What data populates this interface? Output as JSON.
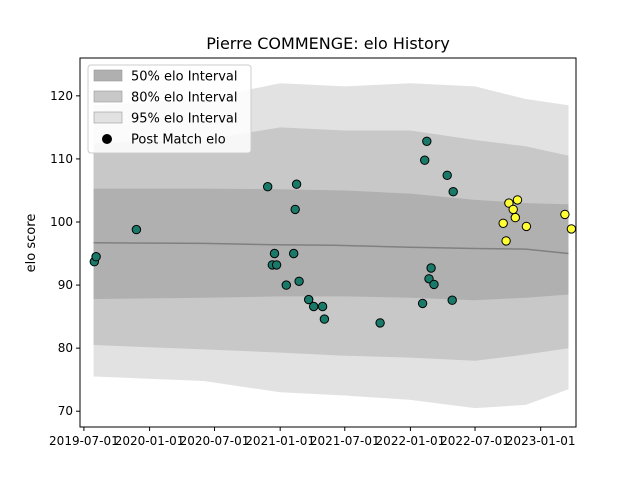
{
  "chart_data": {
    "type": "scatter",
    "title": "Pierre COMMENGE: elo History",
    "xlabel": "",
    "ylabel": "elo score",
    "xlim": [
      "2019-06-20",
      "2023-04-10"
    ],
    "ylim": [
      67.5,
      126
    ],
    "x_ticks": [
      "2019-07",
      "2020-01",
      "2020-07",
      "2021-01",
      "2021-07",
      "2022-01",
      "2022-07",
      "2023-01"
    ],
    "y_ticks": [
      70,
      80,
      90,
      100,
      110,
      120
    ],
    "legend": {
      "placement": "top-left",
      "entries": [
        "50% elo Interval",
        "80% elo Interval",
        "95% elo Interval",
        "Post Match elo"
      ]
    },
    "colors": {
      "band50": "#b0b0b0",
      "band80": "#c8c8c8",
      "band95": "#e2e2e2",
      "mean_line": "#808080",
      "point_old": "#1a7a6a",
      "point_recent": "#ffff33",
      "point_edge": "#000000"
    },
    "elo_mean": [
      {
        "x": "2019-07-28",
        "y": 96.7
      },
      {
        "x": "2020-06-01",
        "y": 96.6
      },
      {
        "x": "2020-12-15",
        "y": 96.4
      },
      {
        "x": "2021-06-01",
        "y": 96.3
      },
      {
        "x": "2022-01-01",
        "y": 96.0
      },
      {
        "x": "2022-07-01",
        "y": 95.8
      },
      {
        "x": "2022-11-20",
        "y": 95.7
      },
      {
        "x": "2023-03-20",
        "y": 95.0
      }
    ],
    "intervals": {
      "p50": {
        "upper": [
          {
            "x": "2019-07-28",
            "y": 105.3
          },
          {
            "x": "2020-06-01",
            "y": 105.3
          },
          {
            "x": "2021-01-01",
            "y": 105.2
          },
          {
            "x": "2021-07-01",
            "y": 105.0
          },
          {
            "x": "2022-01-01",
            "y": 104.5
          },
          {
            "x": "2022-07-01",
            "y": 103.5
          },
          {
            "x": "2022-11-20",
            "y": 103.0
          },
          {
            "x": "2023-03-20",
            "y": 102.8
          }
        ],
        "lower": [
          {
            "x": "2019-07-28",
            "y": 87.8
          },
          {
            "x": "2020-06-01",
            "y": 88.0
          },
          {
            "x": "2021-01-01",
            "y": 88.2
          },
          {
            "x": "2021-07-01",
            "y": 88.2
          },
          {
            "x": "2022-01-01",
            "y": 88.0
          },
          {
            "x": "2022-07-01",
            "y": 87.6
          },
          {
            "x": "2022-11-20",
            "y": 88.0
          },
          {
            "x": "2023-03-20",
            "y": 88.5
          }
        ]
      },
      "p80": {
        "upper": [
          {
            "x": "2019-07-28",
            "y": 112.5
          },
          {
            "x": "2020-06-01",
            "y": 113.0
          },
          {
            "x": "2021-01-01",
            "y": 115.0
          },
          {
            "x": "2021-07-01",
            "y": 114.5
          },
          {
            "x": "2022-01-01",
            "y": 114.5
          },
          {
            "x": "2022-07-01",
            "y": 113.0
          },
          {
            "x": "2022-11-20",
            "y": 112.0
          },
          {
            "x": "2023-03-20",
            "y": 110.5
          }
        ],
        "lower": [
          {
            "x": "2019-07-28",
            "y": 80.5
          },
          {
            "x": "2020-06-01",
            "y": 79.8
          },
          {
            "x": "2021-01-01",
            "y": 79.3
          },
          {
            "x": "2021-07-01",
            "y": 78.8
          },
          {
            "x": "2022-01-01",
            "y": 78.5
          },
          {
            "x": "2022-07-01",
            "y": 78.0
          },
          {
            "x": "2022-11-20",
            "y": 79.0
          },
          {
            "x": "2023-03-20",
            "y": 80.0
          }
        ]
      },
      "p95": {
        "upper": [
          {
            "x": "2019-07-28",
            "y": 118.5
          },
          {
            "x": "2020-06-01",
            "y": 119.5
          },
          {
            "x": "2021-01-01",
            "y": 122.0
          },
          {
            "x": "2021-07-01",
            "y": 121.5
          },
          {
            "x": "2022-01-01",
            "y": 122.0
          },
          {
            "x": "2022-07-01",
            "y": 121.5
          },
          {
            "x": "2022-11-20",
            "y": 119.5
          },
          {
            "x": "2023-03-20",
            "y": 118.5
          }
        ],
        "lower": [
          {
            "x": "2019-07-28",
            "y": 75.5
          },
          {
            "x": "2020-06-01",
            "y": 74.8
          },
          {
            "x": "2021-01-01",
            "y": 73.0
          },
          {
            "x": "2021-07-01",
            "y": 72.5
          },
          {
            "x": "2022-01-01",
            "y": 71.8
          },
          {
            "x": "2022-07-01",
            "y": 70.5
          },
          {
            "x": "2022-11-20",
            "y": 71.0
          },
          {
            "x": "2023-03-20",
            "y": 73.5
          }
        ]
      }
    },
    "post_match_elo": [
      {
        "x": "2019-07-30",
        "y": 93.7,
        "recent": false
      },
      {
        "x": "2019-08-04",
        "y": 94.5,
        "recent": false
      },
      {
        "x": "2019-11-25",
        "y": 98.8,
        "recent": false
      },
      {
        "x": "2020-11-27",
        "y": 105.6,
        "recent": false
      },
      {
        "x": "2020-12-10",
        "y": 93.2,
        "recent": false
      },
      {
        "x": "2020-12-16",
        "y": 95.0,
        "recent": false
      },
      {
        "x": "2020-12-22",
        "y": 93.2,
        "recent": false
      },
      {
        "x": "2021-01-18",
        "y": 90.0,
        "recent": false
      },
      {
        "x": "2021-02-08",
        "y": 95.0,
        "recent": false
      },
      {
        "x": "2021-02-12",
        "y": 102.0,
        "recent": false
      },
      {
        "x": "2021-02-16",
        "y": 106.0,
        "recent": false
      },
      {
        "x": "2021-02-23",
        "y": 90.6,
        "recent": false
      },
      {
        "x": "2021-03-22",
        "y": 87.7,
        "recent": false
      },
      {
        "x": "2021-04-05",
        "y": 86.6,
        "recent": false
      },
      {
        "x": "2021-04-30",
        "y": 86.6,
        "recent": false
      },
      {
        "x": "2021-05-05",
        "y": 84.6,
        "recent": false
      },
      {
        "x": "2021-10-08",
        "y": 84.0,
        "recent": false
      },
      {
        "x": "2022-02-04",
        "y": 87.1,
        "recent": false
      },
      {
        "x": "2022-02-10",
        "y": 109.8,
        "recent": false
      },
      {
        "x": "2022-02-16",
        "y": 112.8,
        "recent": false
      },
      {
        "x": "2022-02-22",
        "y": 91.0,
        "recent": false
      },
      {
        "x": "2022-02-28",
        "y": 92.7,
        "recent": false
      },
      {
        "x": "2022-03-08",
        "y": 90.1,
        "recent": false
      },
      {
        "x": "2022-04-14",
        "y": 107.4,
        "recent": false
      },
      {
        "x": "2022-05-01",
        "y": 104.8,
        "recent": false
      },
      {
        "x": "2022-04-28",
        "y": 87.6,
        "recent": false
      },
      {
        "x": "2022-09-18",
        "y": 99.8,
        "recent": true
      },
      {
        "x": "2022-09-26",
        "y": 97.0,
        "recent": true
      },
      {
        "x": "2022-10-04",
        "y": 103.0,
        "recent": true
      },
      {
        "x": "2022-10-16",
        "y": 102.0,
        "recent": true
      },
      {
        "x": "2022-10-22",
        "y": 100.7,
        "recent": true
      },
      {
        "x": "2022-10-28",
        "y": 103.5,
        "recent": true
      },
      {
        "x": "2022-11-22",
        "y": 99.3,
        "recent": true
      },
      {
        "x": "2023-03-10",
        "y": 101.2,
        "recent": true
      },
      {
        "x": "2023-03-28",
        "y": 98.9,
        "recent": true
      }
    ]
  }
}
